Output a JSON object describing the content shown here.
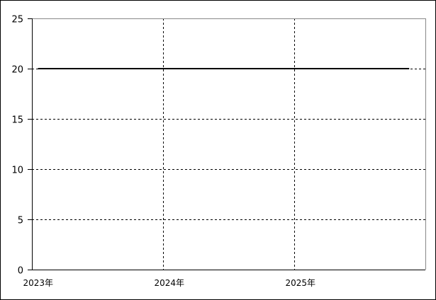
{
  "chart_data": {
    "type": "line",
    "title": "",
    "xlabel": "",
    "ylabel": "",
    "x_axis_type": "date",
    "xlim": [
      "2023-01-01",
      "2026-01-01"
    ],
    "ylim": [
      0,
      25
    ],
    "x_ticks": [
      {
        "date": "2023-01-01",
        "label": "2023年"
      },
      {
        "date": "2024-01-01",
        "label": "2024年"
      },
      {
        "date": "2025-01-01",
        "label": "2025年"
      }
    ],
    "y_ticks": [
      {
        "value": 0,
        "label": "0"
      },
      {
        "value": 5,
        "label": "5"
      },
      {
        "value": 10,
        "label": "10"
      },
      {
        "value": 15,
        "label": "15"
      },
      {
        "value": 20,
        "label": "20"
      },
      {
        "value": 25,
        "label": "25"
      }
    ],
    "grid": true,
    "grid_style": "dashed",
    "series": [
      {
        "color": "#000000",
        "points": [
          {
            "x": "2023-01-18",
            "y": 20
          },
          {
            "x": "2025-11-17",
            "y": 20
          }
        ]
      }
    ]
  }
}
